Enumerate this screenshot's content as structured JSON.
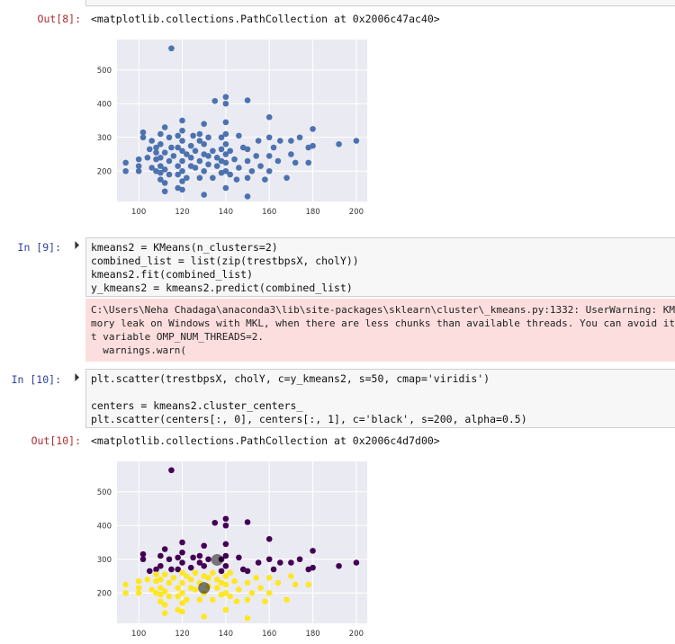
{
  "out8": {
    "prompt": "Out[8]:",
    "repr": "<matplotlib.collections.PathCollection at 0x2006c47ac40>"
  },
  "in9": {
    "prompt": "In [9]:",
    "lines": [
      "kmeans2 = KMeans(n_clusters=2)",
      "combined_list = list(zip(trestbpsX, cholY))",
      "kmeans2.fit(combined_list)",
      "y_kmeans2 = kmeans2.predict(combined_list)"
    ],
    "stderr": [
      "C:\\Users\\Neha Chadaga\\anaconda3\\lib\\site-packages\\sklearn\\cluster\\_kmeans.py:1332: UserWarning: KMeans",
      "mory leak on Windows with MKL, when there are less chunks than available threads. You can avoid it by",
      "t variable OMP_NUM_THREADS=2.",
      "  warnings.warn("
    ]
  },
  "in10": {
    "prompt": "In [10]:",
    "line1": "plt.scatter(trestbpsX, cholY, c=y_kmeans2, s=50, cmap='viridis')",
    "line2": "centers = kmeans2.cluster_centers_",
    "line3": "plt.scatter(centers[:, 0], centers[:, 1], c='black', s=200, alpha=0.5)"
  },
  "out10": {
    "prompt": "Out[10]:",
    "repr": "<matplotlib.collections.PathCollection at 0x2006c4d7d00>"
  },
  "colors": {
    "scatter_blue": "#4c72b0",
    "cluster_purple": "#440154",
    "cluster_yellow": "#fde725",
    "center": "#000000",
    "axes_bg": "#eaeaf2"
  },
  "chart_data": [
    {
      "type": "scatter",
      "xlim": [
        90,
        205
      ],
      "ylim": [
        110,
        590
      ],
      "xticks": [
        100,
        120,
        140,
        160,
        180,
        200
      ],
      "yticks": [
        200,
        300,
        400,
        500
      ],
      "grid": true,
      "series": [
        {
          "points": [
            [
              94,
              200
            ],
            [
              94,
              225
            ],
            [
              100,
              200
            ],
            [
              100,
              215
            ],
            [
              100,
              235
            ],
            [
              102,
              300
            ],
            [
              102,
              315
            ],
            [
              104,
              240
            ],
            [
              105,
              265
            ],
            [
              106,
              210
            ],
            [
              106,
              290
            ],
            [
              108,
              200
            ],
            [
              108,
              235
            ],
            [
              108,
              255
            ],
            [
              108,
              270
            ],
            [
              110,
              175
            ],
            [
              110,
              195
            ],
            [
              110,
              215
            ],
            [
              110,
              240
            ],
            [
              110,
              280
            ],
            [
              110,
              310
            ],
            [
              112,
              140
            ],
            [
              112,
              165
            ],
            [
              112,
              205
            ],
            [
              112,
              255
            ],
            [
              112,
              330
            ],
            [
              114,
              190
            ],
            [
              114,
              230
            ],
            [
              114,
              300
            ],
            [
              115,
              564
            ],
            [
              115,
              270
            ],
            [
              116,
              245
            ],
            [
              118,
              150
            ],
            [
              118,
              190
            ],
            [
              118,
              215
            ],
            [
              118,
              270
            ],
            [
              118,
              305
            ],
            [
              120,
              145
            ],
            [
              120,
              170
            ],
            [
              120,
              200
            ],
            [
              120,
              230
            ],
            [
              120,
              260
            ],
            [
              120,
              290
            ],
            [
              120,
              320
            ],
            [
              120,
              350
            ],
            [
              122,
              180
            ],
            [
              122,
              250
            ],
            [
              124,
              215
            ],
            [
              124,
              240
            ],
            [
              124,
              275
            ],
            [
              125,
              305
            ],
            [
              126,
              210
            ],
            [
              126,
              260
            ],
            [
              128,
              180
            ],
            [
              128,
              230
            ],
            [
              128,
              290
            ],
            [
              128,
              310
            ],
            [
              130,
              130
            ],
            [
              130,
              200
            ],
            [
              130,
              250
            ],
            [
              130,
              280
            ],
            [
              130,
              340
            ],
            [
              132,
              220
            ],
            [
              132,
              245
            ],
            [
              132,
              300
            ],
            [
              134,
              180
            ],
            [
              134,
              260
            ],
            [
              135,
              408
            ],
            [
              136,
              215
            ],
            [
              136,
              240
            ],
            [
              138,
              195
            ],
            [
              138,
              230
            ],
            [
              138,
              265
            ],
            [
              138,
              300
            ],
            [
              140,
              150
            ],
            [
              140,
              200
            ],
            [
              140,
              225
            ],
            [
              140,
              250
            ],
            [
              140,
              280
            ],
            [
              140,
              310
            ],
            [
              140,
              345
            ],
            [
              140,
              420
            ],
            [
              140,
              400
            ],
            [
              142,
              190
            ],
            [
              142,
              260
            ],
            [
              144,
              235
            ],
            [
              145,
              175
            ],
            [
              146,
              210
            ],
            [
              146,
              305
            ],
            [
              148,
              270
            ],
            [
              150,
              125
            ],
            [
              150,
              180
            ],
            [
              150,
              230
            ],
            [
              150,
              265
            ],
            [
              150,
              410
            ],
            [
              152,
              200
            ],
            [
              154,
              245
            ],
            [
              155,
              290
            ],
            [
              156,
              215
            ],
            [
              158,
              175
            ],
            [
              160,
              200
            ],
            [
              160,
              245
            ],
            [
              160,
              300
            ],
            [
              160,
              360
            ],
            [
              162,
              270
            ],
            [
              164,
              230
            ],
            [
              165,
              290
            ],
            [
              168,
              180
            ],
            [
              170,
              250
            ],
            [
              170,
              290
            ],
            [
              172,
              225
            ],
            [
              174,
              300
            ],
            [
              178,
              225
            ],
            [
              178,
              270
            ],
            [
              180,
              275
            ],
            [
              180,
              325
            ],
            [
              192,
              280
            ],
            [
              200,
              290
            ]
          ]
        }
      ]
    },
    {
      "type": "scatter",
      "xlim": [
        90,
        205
      ],
      "ylim": [
        110,
        590
      ],
      "xticks": [
        100,
        120,
        140,
        160,
        180,
        200
      ],
      "yticks": [
        200,
        300,
        400,
        500
      ],
      "grid": true,
      "series": [
        {
          "points": [
            [
              115,
              564
            ],
            [
              135,
              408
            ],
            [
              140,
              420
            ],
            [
              140,
              400
            ],
            [
              150,
              410
            ],
            [
              140,
              345
            ],
            [
              120,
              350
            ],
            [
              130,
              340
            ],
            [
              112,
              330
            ],
            [
              180,
              325
            ],
            [
              120,
              320
            ],
            [
              102,
              315
            ],
            [
              110,
              310
            ],
            [
              128,
              310
            ],
            [
              140,
              310
            ],
            [
              125,
              305
            ],
            [
              118,
              305
            ],
            [
              146,
              305
            ],
            [
              102,
              300
            ],
            [
              114,
              300
            ],
            [
              132,
              300
            ],
            [
              138,
              300
            ],
            [
              160,
              300
            ],
            [
              174,
              300
            ],
            [
              110,
              280
            ],
            [
              130,
              280
            ],
            [
              140,
              280
            ],
            [
              155,
              290
            ],
            [
              165,
              290
            ],
            [
              170,
              290
            ],
            [
              120,
              290
            ],
            [
              128,
              290
            ],
            [
              160,
              360
            ],
            [
              192,
              280
            ],
            [
              200,
              290
            ],
            [
              180,
              275
            ],
            [
              162,
              270
            ],
            [
              178,
              270
            ],
            [
              148,
              270
            ],
            [
              105,
              265
            ],
            [
              108,
              270
            ],
            [
              118,
              270
            ],
            [
              115,
              270
            ],
            [
              124,
              275
            ],
            [
              138,
              265
            ],
            [
              150,
              265
            ]
          ]
        },
        {
          "points": [
            [
              94,
              200
            ],
            [
              94,
              225
            ],
            [
              100,
              200
            ],
            [
              100,
              215
            ],
            [
              100,
              235
            ],
            [
              104,
              240
            ],
            [
              106,
              210
            ],
            [
              108,
              200
            ],
            [
              108,
              235
            ],
            [
              108,
              255
            ],
            [
              110,
              175
            ],
            [
              110,
              195
            ],
            [
              110,
              215
            ],
            [
              110,
              240
            ],
            [
              112,
              140
            ],
            [
              112,
              165
            ],
            [
              112,
              205
            ],
            [
              112,
              255
            ],
            [
              114,
              190
            ],
            [
              114,
              230
            ],
            [
              116,
              245
            ],
            [
              118,
              150
            ],
            [
              118,
              190
            ],
            [
              118,
              215
            ],
            [
              120,
              145
            ],
            [
              120,
              170
            ],
            [
              120,
              200
            ],
            [
              120,
              230
            ],
            [
              120,
              260
            ],
            [
              122,
              180
            ],
            [
              122,
              250
            ],
            [
              124,
              215
            ],
            [
              124,
              240
            ],
            [
              126,
              210
            ],
            [
              126,
              260
            ],
            [
              128,
              180
            ],
            [
              128,
              230
            ],
            [
              130,
              130
            ],
            [
              130,
              200
            ],
            [
              130,
              250
            ],
            [
              132,
              220
            ],
            [
              132,
              245
            ],
            [
              134,
              180
            ],
            [
              134,
              260
            ],
            [
              136,
              215
            ],
            [
              136,
              240
            ],
            [
              138,
              195
            ],
            [
              138,
              230
            ],
            [
              140,
              150
            ],
            [
              140,
              200
            ],
            [
              140,
              225
            ],
            [
              140,
              250
            ],
            [
              142,
              190
            ],
            [
              142,
              260
            ],
            [
              144,
              235
            ],
            [
              145,
              175
            ],
            [
              146,
              210
            ],
            [
              150,
              125
            ],
            [
              150,
              180
            ],
            [
              150,
              230
            ],
            [
              152,
              200
            ],
            [
              154,
              245
            ],
            [
              156,
              215
            ],
            [
              158,
              175
            ],
            [
              160,
              200
            ],
            [
              160,
              245
            ],
            [
              164,
              230
            ],
            [
              168,
              180
            ],
            [
              170,
              250
            ],
            [
              172,
              225
            ],
            [
              178,
              225
            ]
          ]
        },
        {
          "points": [
            [
              130,
              215
            ],
            [
              136,
              298
            ]
          ]
        }
      ]
    }
  ]
}
